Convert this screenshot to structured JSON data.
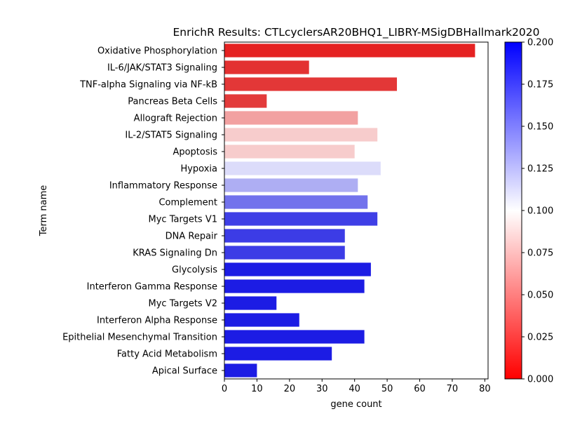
{
  "chart_data": {
    "type": "bar",
    "orientation": "horizontal",
    "title": "EnrichR Results: CTLcyclersAR20BHQ1_LIBRY-MSigDBHallmark2020",
    "xlabel": "gene count",
    "ylabel": "Term name",
    "xlim": [
      0,
      81
    ],
    "x_ticks": [
      "0",
      "10",
      "20",
      "30",
      "40",
      "50",
      "60",
      "70",
      "80"
    ],
    "grid": false,
    "categories": [
      "Oxidative Phosphorylation",
      "IL-6/JAK/STAT3 Signaling",
      "TNF-alpha Signaling via NF-kB",
      "Pancreas Beta Cells",
      "Allograft Rejection",
      "IL-2/STAT5 Signaling",
      "Apoptosis",
      "Hypoxia",
      "Inflammatory Response",
      "Complement",
      "Myc Targets V1",
      "DNA Repair",
      "KRAS Signaling Dn",
      "Glycolysis",
      "Interferon Gamma Response",
      "Myc Targets V2",
      "Interferon Alpha Response",
      "Epithelial Mesenchymal Transition",
      "Fatty Acid Metabolism",
      "Apical Surface"
    ],
    "values": [
      77,
      26,
      53,
      13,
      41,
      47,
      40,
      48,
      41,
      44,
      47,
      37,
      37,
      45,
      43,
      16,
      23,
      43,
      33,
      10
    ],
    "bar_colors": [
      "#e52222",
      "#e33131",
      "#e33737",
      "#e33b3b",
      "#f2a1a1",
      "#f7cccc",
      "#f7cccc",
      "#dcdcfa",
      "#aeaef3",
      "#7272ec",
      "#3f3fe6",
      "#3c3ce6",
      "#3c3ce6",
      "#1c1ce4",
      "#1c1ce4",
      "#1c1ce4",
      "#1c1ce4",
      "#1c1ce4",
      "#1c1ce4",
      "#1c1ce4"
    ],
    "colorbar": {
      "min": 0.0,
      "max": 0.2,
      "ticks": [
        "0.000",
        "0.025",
        "0.050",
        "0.075",
        "0.100",
        "0.125",
        "0.150",
        "0.175",
        "0.200"
      ],
      "colors": [
        "#ff0000",
        "#ffffff",
        "#0000ff"
      ]
    }
  }
}
